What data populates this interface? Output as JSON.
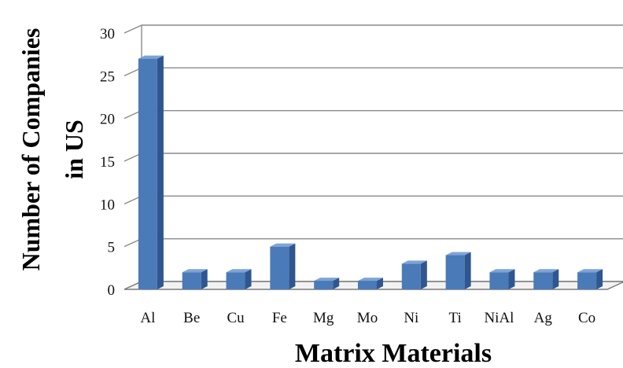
{
  "chart_data": {
    "type": "bar",
    "title": "",
    "xlabel": "Matrix Materials",
    "ylabel_lines": [
      "Number of Companies",
      "in US"
    ],
    "categories": [
      "Al",
      "Be",
      "Cu",
      "Fe",
      "Mg",
      "Mo",
      "Ni",
      "Ti",
      "NiAl",
      "Ag",
      "Co"
    ],
    "values": [
      27,
      2,
      2,
      5,
      1,
      1,
      3,
      4,
      2,
      2,
      2
    ],
    "ylim": [
      0,
      30
    ],
    "yticks": [
      0,
      5,
      10,
      15,
      20,
      25,
      30
    ],
    "grid": true,
    "style": "3d-column",
    "bar_color": "#4a7ab8"
  }
}
